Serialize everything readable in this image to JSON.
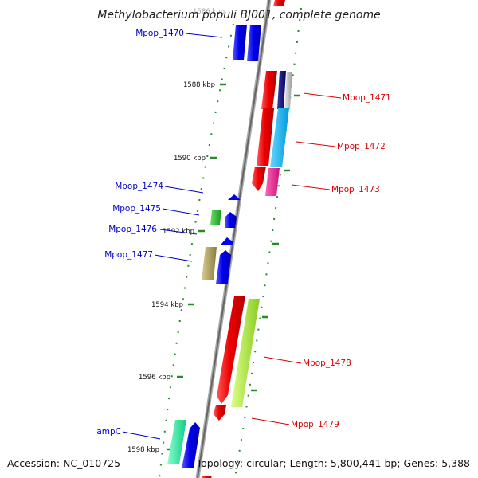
{
  "title": "Methylobacterium populi BJ001, complete genome",
  "footer": {
    "accession": "Accession: NC_010725",
    "summary": "Topology: circular; Length: 5,800,441 bp; Genes: 5,388"
  },
  "ticks": {
    "t1586": "1586 kbp",
    "t1588": "1588 kbp",
    "t1590": "1590 kbp",
    "t1592": "1592 kbp",
    "t1594": "1594 kbp",
    "t1596": "1596 kbp",
    "t1598": "1598 kbp"
  },
  "genes": {
    "mpop_1470": "Mpop_1470",
    "mpop_1471": "Mpop_1471",
    "mpop_1472": "Mpop_1472",
    "mpop_1473": "Mpop_1473",
    "mpop_1474": "Mpop_1474",
    "mpop_1475": "Mpop_1475",
    "mpop_1476": "Mpop_1476",
    "mpop_1477": "Mpop_1477",
    "mpop_1478": "Mpop_1478",
    "mpop_1479": "Mpop_1479",
    "ampc": "ampC"
  },
  "colors": {
    "forward_strand_label": "#0000cc",
    "reverse_strand_label": "#dd0000",
    "backbone": "#888888",
    "tick_marks": "#2a8a2a"
  }
}
